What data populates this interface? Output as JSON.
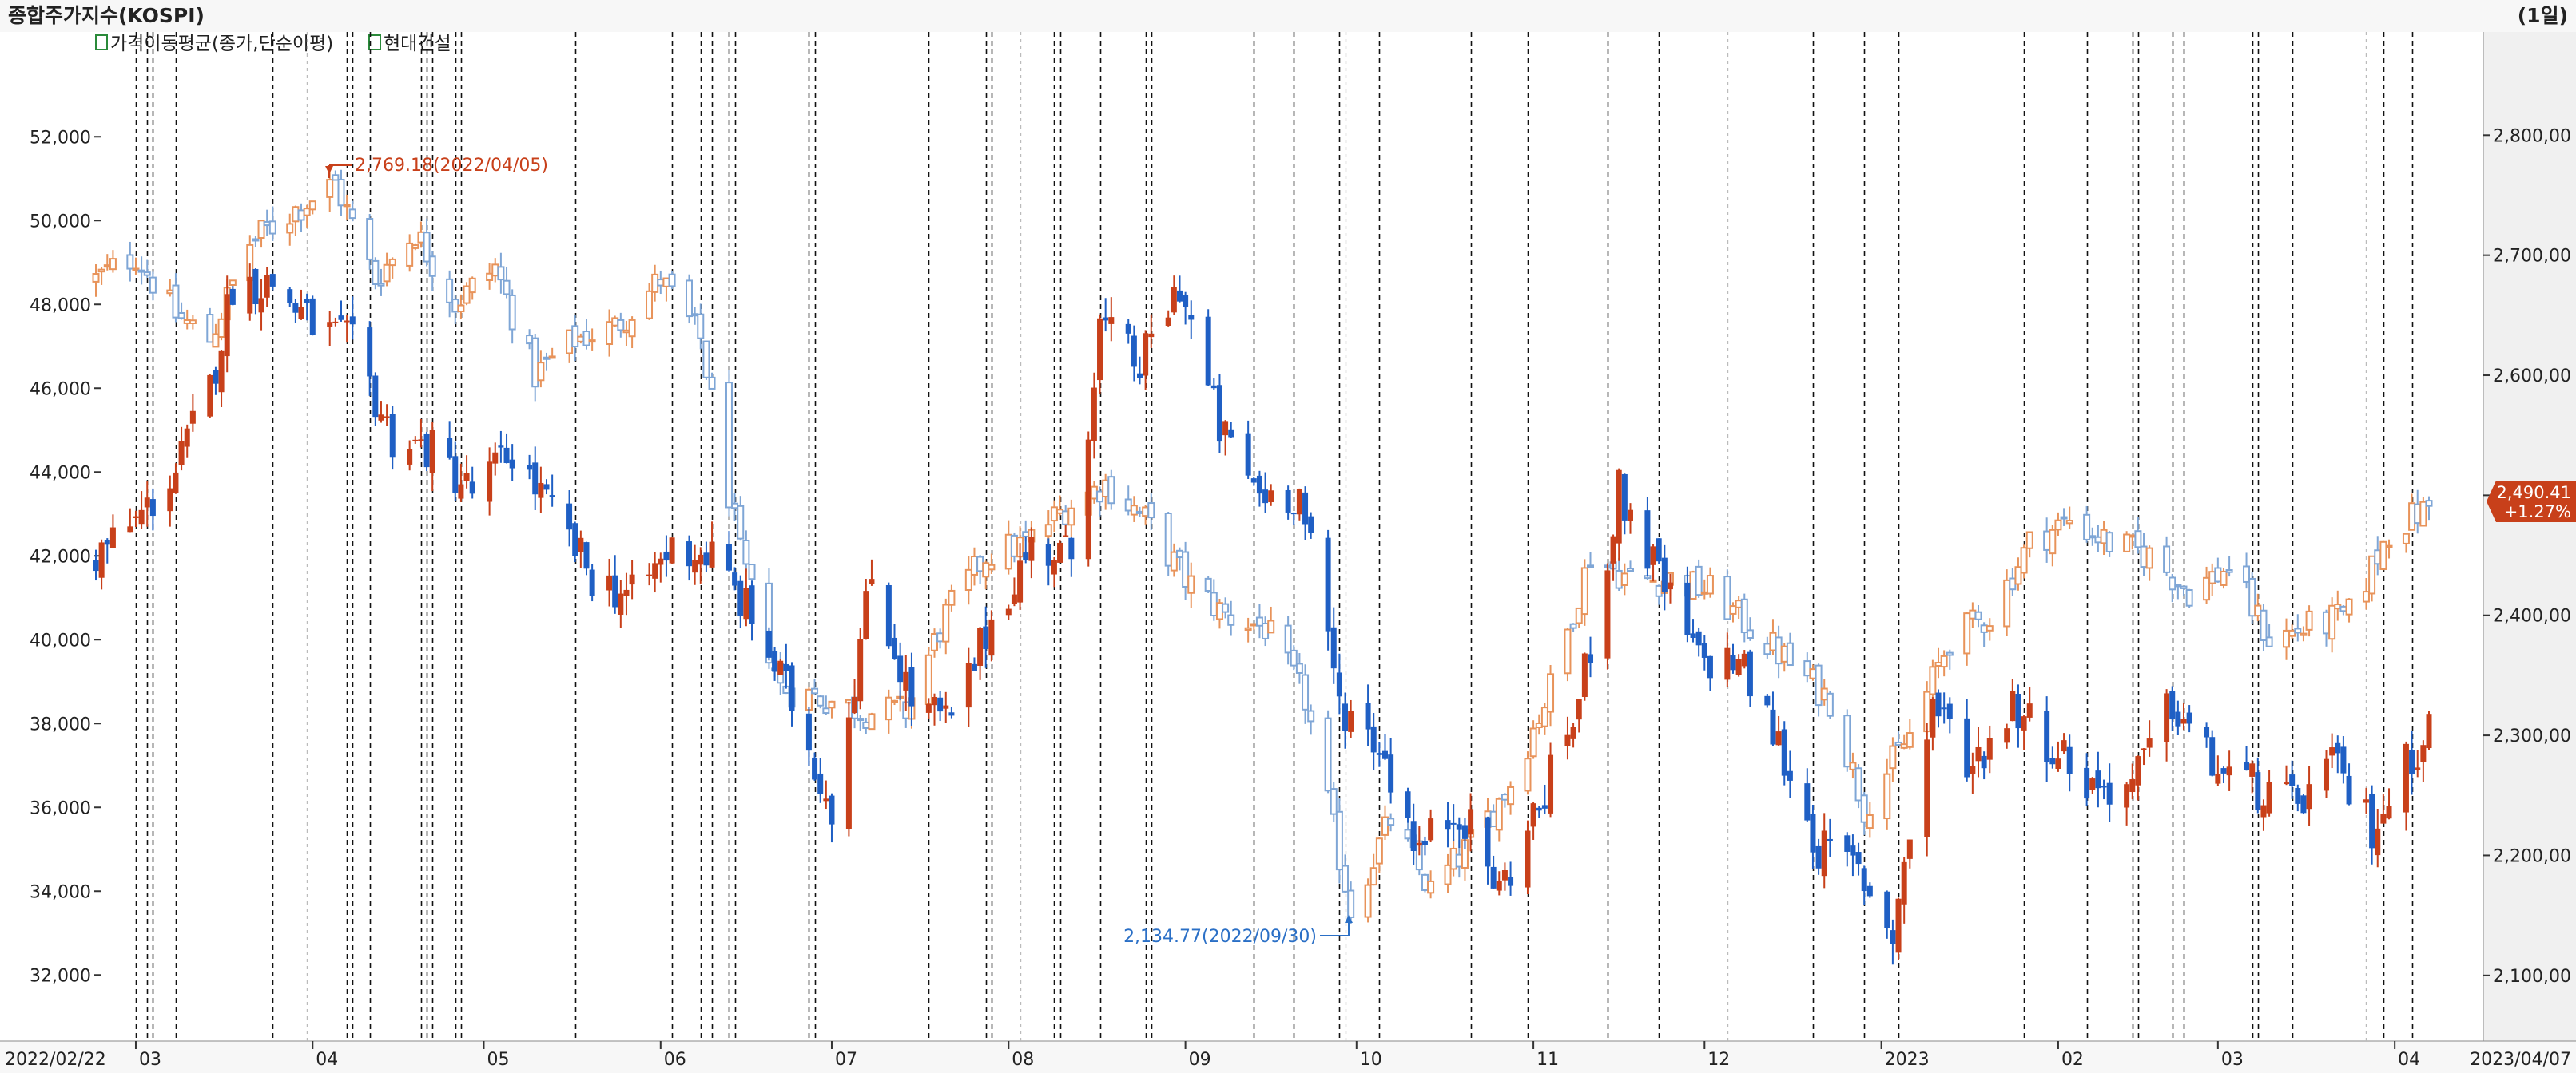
{
  "window": {
    "title": "종합주가지수(KOSPI)",
    "period": "(1일)"
  },
  "legend": {
    "items": [
      {
        "label": "가격이동평균(종가,단순이평)",
        "color": "#2a6fc6"
      },
      {
        "label": "현대건설",
        "color": "#c8401a"
      }
    ]
  },
  "badge": {
    "price": "2,490.41",
    "change": "+1.27%",
    "color": "#c8401a"
  },
  "annotations": {
    "high": "2,769.18(2022/04/05)",
    "low": "2,134.77(2022/09/30)"
  },
  "colors": {
    "up": "#c8401a",
    "down": "#1f5fc4",
    "kospi_up": "#e8935a",
    "kospi_down": "#7fa6d6",
    "grid": "#000000",
    "axis_panel": "#f0f0f0"
  },
  "chart_data": {
    "type": "candlestick",
    "title": "종합주가지수(KOSPI)",
    "x_range": [
      "2022/02/22",
      "2023/04/07"
    ],
    "month_labels": [
      "03",
      "04",
      "05",
      "06",
      "07",
      "08",
      "09",
      "10",
      "11",
      "12",
      "2023",
      "02",
      "03",
      "04"
    ],
    "left_axis": {
      "series": "현대건설",
      "ticks": [
        "52,000",
        "50,000",
        "48,000",
        "46,000",
        "44,000",
        "42,000",
        "40,000",
        "38,000",
        "36,000",
        "34,000",
        "32,000"
      ],
      "range": [
        30500,
        54500
      ]
    },
    "right_axis": {
      "series": "종합주가지수(KOSPI)",
      "ticks": [
        "2,800,00",
        "2,700,00",
        "2,600,00",
        "2,500,00",
        "2,400,00",
        "2,300,00",
        "2,200,00",
        "2,100,00"
      ],
      "range": [
        2048,
        2886
      ]
    },
    "series": [
      {
        "name": "현대건설",
        "axis": "left",
        "approx_close_path": [
          [
            "2022-02-22",
            42000
          ],
          [
            "2022-03-01",
            42800
          ],
          [
            "2022-03-08",
            44000
          ],
          [
            "2022-03-14",
            46000
          ],
          [
            "2022-03-18",
            48500
          ],
          [
            "2022-03-25",
            48500
          ],
          [
            "2022-04-01",
            47500
          ],
          [
            "2022-04-08",
            47000
          ],
          [
            "2022-04-15",
            44800
          ],
          [
            "2022-04-22",
            44500
          ],
          [
            "2022-04-29",
            43500
          ],
          [
            "2022-05-06",
            44500
          ],
          [
            "2022-05-13",
            43000
          ],
          [
            "2022-05-20",
            41500
          ],
          [
            "2022-05-27",
            41000
          ],
          [
            "2022-06-03",
            42200
          ],
          [
            "2022-06-10",
            42000
          ],
          [
            "2022-06-17",
            40500
          ],
          [
            "2022-06-24",
            38500
          ],
          [
            "2022-07-01",
            36000
          ],
          [
            "2022-07-08",
            41500
          ],
          [
            "2022-07-15",
            38500
          ],
          [
            "2022-07-22",
            38000
          ],
          [
            "2022-07-29",
            40500
          ],
          [
            "2022-08-05",
            42200
          ],
          [
            "2022-08-12",
            42000
          ],
          [
            "2022-08-17",
            47500
          ],
          [
            "2022-08-24",
            46500
          ],
          [
            "2022-08-31",
            48500
          ],
          [
            "2022-09-07",
            45000
          ],
          [
            "2022-09-14",
            43500
          ],
          [
            "2022-09-21",
            43500
          ],
          [
            "2022-09-28",
            38500
          ],
          [
            "2022-10-05",
            37500
          ],
          [
            "2022-10-12",
            35000
          ],
          [
            "2022-10-19",
            36000
          ],
          [
            "2022-10-26",
            34000
          ],
          [
            "2022-11-02",
            36000
          ],
          [
            "2022-11-09",
            38500
          ],
          [
            "2022-11-16",
            43500
          ],
          [
            "2022-11-23",
            41500
          ],
          [
            "2022-11-30",
            39500
          ],
          [
            "2022-12-07",
            39500
          ],
          [
            "2022-12-14",
            37500
          ],
          [
            "2022-12-21",
            35000
          ],
          [
            "2022-12-28",
            34500
          ],
          [
            "2023-01-03",
            33000
          ],
          [
            "2023-01-10",
            38500
          ],
          [
            "2023-01-17",
            37000
          ],
          [
            "2023-01-24",
            38500
          ],
          [
            "2023-01-31",
            37500
          ],
          [
            "2023-02-07",
            36500
          ],
          [
            "2023-02-14",
            36500
          ],
          [
            "2023-02-21",
            38500
          ],
          [
            "2023-02-28",
            37000
          ],
          [
            "2023-03-07",
            36500
          ],
          [
            "2023-03-14",
            36000
          ],
          [
            "2023-03-21",
            37000
          ],
          [
            "2023-03-28",
            35500
          ],
          [
            "2023-04-03",
            37000
          ],
          [
            "2023-04-07",
            38000
          ]
        ]
      },
      {
        "name": "종합주가지수(KOSPI)",
        "axis": "right",
        "high_point": {
          "date": "2022/04/05",
          "value": 2769.18
        },
        "low_point": {
          "date": "2022/09/30",
          "value": 2134.77
        },
        "last": {
          "value": 2490.41,
          "change": "+1.27%"
        },
        "approx_close_path": [
          [
            "2022-02-22",
            2680
          ],
          [
            "2022-03-01",
            2700
          ],
          [
            "2022-03-08",
            2650
          ],
          [
            "2022-03-14",
            2630
          ],
          [
            "2022-03-21",
            2710
          ],
          [
            "2022-03-28",
            2735
          ],
          [
            "2022-04-05",
            2760
          ],
          [
            "2022-04-12",
            2680
          ],
          [
            "2022-04-19",
            2720
          ],
          [
            "2022-04-26",
            2660
          ],
          [
            "2022-05-03",
            2690
          ],
          [
            "2022-05-10",
            2600
          ],
          [
            "2022-05-17",
            2630
          ],
          [
            "2022-05-24",
            2640
          ],
          [
            "2022-06-01",
            2680
          ],
          [
            "2022-06-08",
            2630
          ],
          [
            "2022-06-15",
            2450
          ],
          [
            "2022-06-22",
            2340
          ],
          [
            "2022-06-30",
            2330
          ],
          [
            "2022-07-07",
            2320
          ],
          [
            "2022-07-14",
            2320
          ],
          [
            "2022-07-21",
            2400
          ],
          [
            "2022-07-28",
            2450
          ],
          [
            "2022-08-04",
            2460
          ],
          [
            "2022-08-11",
            2490
          ],
          [
            "2022-08-18",
            2510
          ],
          [
            "2022-08-25",
            2480
          ],
          [
            "2022-09-01",
            2430
          ],
          [
            "2022-09-08",
            2400
          ],
          [
            "2022-09-15",
            2390
          ],
          [
            "2022-09-22",
            2330
          ],
          [
            "2022-09-30",
            2155
          ],
          [
            "2022-10-07",
            2230
          ],
          [
            "2022-10-14",
            2170
          ],
          [
            "2022-10-21",
            2210
          ],
          [
            "2022-10-28",
            2260
          ],
          [
            "2022-11-04",
            2340
          ],
          [
            "2022-11-11",
            2450
          ],
          [
            "2022-11-18",
            2430
          ],
          [
            "2022-11-25",
            2430
          ],
          [
            "2022-12-02",
            2420
          ],
          [
            "2022-12-09",
            2390
          ],
          [
            "2022-12-16",
            2360
          ],
          [
            "2022-12-23",
            2330
          ],
          [
            "2022-12-29",
            2240
          ],
          [
            "2023-01-06",
            2300
          ],
          [
            "2023-01-13",
            2380
          ],
          [
            "2023-01-20",
            2400
          ],
          [
            "2023-01-27",
            2460
          ],
          [
            "2023-02-03",
            2480
          ],
          [
            "2023-02-10",
            2460
          ],
          [
            "2023-02-17",
            2450
          ],
          [
            "2023-02-24",
            2420
          ],
          [
            "2023-03-03",
            2440
          ],
          [
            "2023-03-10",
            2380
          ],
          [
            "2023-03-17",
            2390
          ],
          [
            "2023-03-24",
            2400
          ],
          [
            "2023-03-31",
            2470
          ],
          [
            "2023-04-07",
            2490
          ]
        ]
      }
    ],
    "vertical_event_lines": "dashed black verticals marking dates"
  }
}
